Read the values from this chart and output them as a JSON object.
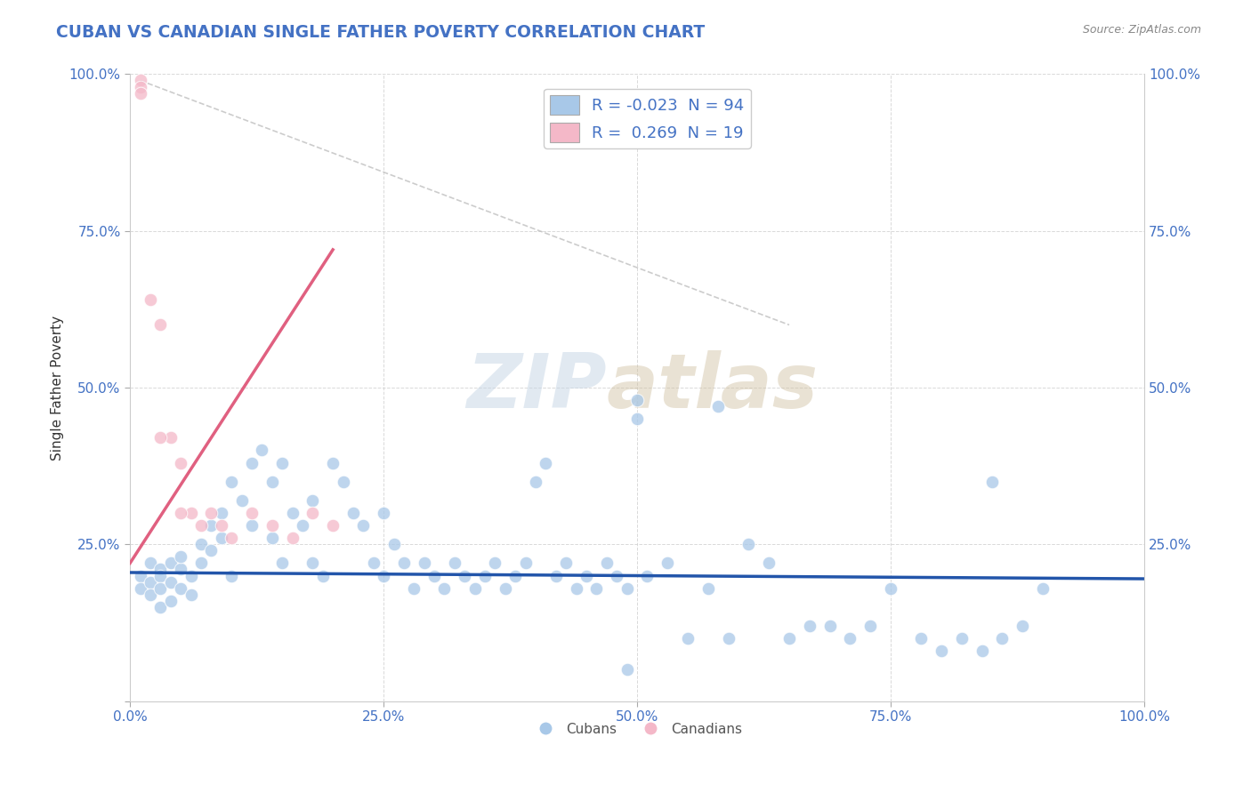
{
  "title": "CUBAN VS CANADIAN SINGLE FATHER POVERTY CORRELATION CHART",
  "source": "Source: ZipAtlas.com",
  "ylabel": "Single Father Poverty",
  "xlim": [
    0,
    1.0
  ],
  "ylim": [
    0,
    1.0
  ],
  "xticks": [
    0.0,
    0.25,
    0.5,
    0.75,
    1.0
  ],
  "yticks": [
    0.0,
    0.25,
    0.5,
    0.75,
    1.0
  ],
  "xticklabels": [
    "0.0%",
    "25.0%",
    "50.0%",
    "75.0%",
    "100.0%"
  ],
  "yticklabels": [
    "",
    "25.0%",
    "50.0%",
    "75.0%",
    "100.0%"
  ],
  "blue_color": "#a8c8e8",
  "pink_color": "#f4b8c8",
  "blue_line_color": "#2255aa",
  "pink_line_color": "#e06080",
  "legend_R_blue": "-0.023",
  "legend_N_blue": "94",
  "legend_R_pink": "0.269",
  "legend_N_pink": "19",
  "blue_scatter_x": [
    0.01,
    0.01,
    0.02,
    0.02,
    0.02,
    0.03,
    0.03,
    0.03,
    0.03,
    0.04,
    0.04,
    0.04,
    0.05,
    0.05,
    0.05,
    0.06,
    0.06,
    0.07,
    0.07,
    0.08,
    0.08,
    0.09,
    0.09,
    0.1,
    0.1,
    0.11,
    0.12,
    0.12,
    0.13,
    0.14,
    0.14,
    0.15,
    0.15,
    0.16,
    0.17,
    0.18,
    0.18,
    0.19,
    0.2,
    0.21,
    0.22,
    0.23,
    0.24,
    0.25,
    0.25,
    0.26,
    0.27,
    0.28,
    0.29,
    0.3,
    0.31,
    0.32,
    0.33,
    0.34,
    0.35,
    0.36,
    0.37,
    0.38,
    0.39,
    0.4,
    0.41,
    0.42,
    0.43,
    0.44,
    0.45,
    0.46,
    0.47,
    0.48,
    0.49,
    0.5,
    0.51,
    0.53,
    0.55,
    0.57,
    0.59,
    0.61,
    0.63,
    0.65,
    0.67,
    0.69,
    0.71,
    0.73,
    0.75,
    0.78,
    0.8,
    0.82,
    0.84,
    0.86,
    0.88,
    0.9,
    0.49,
    0.5,
    0.58,
    0.85
  ],
  "blue_scatter_y": [
    0.2,
    0.18,
    0.19,
    0.17,
    0.22,
    0.21,
    0.2,
    0.18,
    0.15,
    0.22,
    0.19,
    0.16,
    0.21,
    0.18,
    0.23,
    0.2,
    0.17,
    0.25,
    0.22,
    0.28,
    0.24,
    0.3,
    0.26,
    0.35,
    0.2,
    0.32,
    0.38,
    0.28,
    0.4,
    0.35,
    0.26,
    0.38,
    0.22,
    0.3,
    0.28,
    0.32,
    0.22,
    0.2,
    0.38,
    0.35,
    0.3,
    0.28,
    0.22,
    0.3,
    0.2,
    0.25,
    0.22,
    0.18,
    0.22,
    0.2,
    0.18,
    0.22,
    0.2,
    0.18,
    0.2,
    0.22,
    0.18,
    0.2,
    0.22,
    0.35,
    0.38,
    0.2,
    0.22,
    0.18,
    0.2,
    0.18,
    0.22,
    0.2,
    0.18,
    0.45,
    0.2,
    0.22,
    0.1,
    0.18,
    0.1,
    0.25,
    0.22,
    0.1,
    0.12,
    0.12,
    0.1,
    0.12,
    0.18,
    0.1,
    0.08,
    0.1,
    0.08,
    0.1,
    0.12,
    0.18,
    0.05,
    0.48,
    0.47,
    0.35
  ],
  "pink_scatter_x": [
    0.01,
    0.01,
    0.01,
    0.02,
    0.03,
    0.04,
    0.05,
    0.06,
    0.07,
    0.08,
    0.09,
    0.1,
    0.12,
    0.14,
    0.16,
    0.18,
    0.2,
    0.03,
    0.05
  ],
  "pink_scatter_y": [
    0.99,
    0.98,
    0.97,
    0.64,
    0.6,
    0.42,
    0.38,
    0.3,
    0.28,
    0.3,
    0.28,
    0.26,
    0.3,
    0.28,
    0.26,
    0.3,
    0.28,
    0.42,
    0.3
  ],
  "pink_line_x0": 0.0,
  "pink_line_y0": 0.22,
  "pink_line_x1": 0.2,
  "pink_line_y1": 0.72,
  "blue_line_x0": 0.0,
  "blue_line_y0": 0.205,
  "blue_line_x1": 1.0,
  "blue_line_y1": 0.195,
  "dash_line_x0": 0.01,
  "dash_line_y0": 0.99,
  "dash_line_x1": 0.65,
  "dash_line_y1": 0.6
}
